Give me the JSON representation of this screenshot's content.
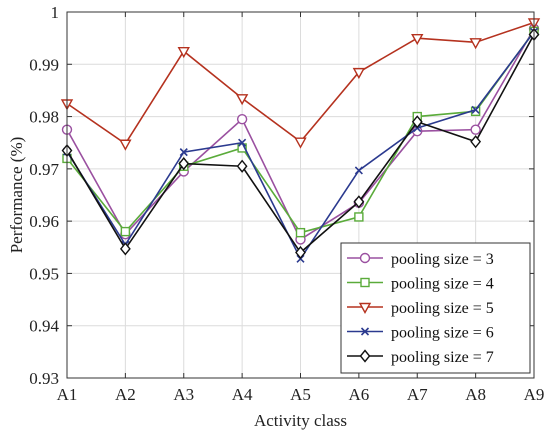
{
  "chart_data": {
    "type": "line",
    "xlabel": "Activity class",
    "ylabel": "Performance (%)",
    "categories": [
      "A1",
      "A2",
      "A3",
      "A4",
      "A5",
      "A6",
      "A7",
      "A8",
      "A9"
    ],
    "ylim": [
      0.93,
      1.0
    ],
    "yticks": [
      "0.93",
      "0.94",
      "0.95",
      "0.96",
      "0.97",
      "0.98",
      "0.99",
      "1"
    ],
    "grid": true,
    "legend_position": "bottom-right",
    "series": [
      {
        "name": "pooling size = 3",
        "color": "#9a50a0",
        "marker": "circle",
        "values": [
          0.9775,
          0.9575,
          0.9695,
          0.9795,
          0.9565,
          0.9635,
          0.9772,
          0.9775,
          0.9968
        ]
      },
      {
        "name": "pooling size = 4",
        "color": "#5aab3a",
        "marker": "square",
        "values": [
          0.972,
          0.958,
          0.9705,
          0.974,
          0.9578,
          0.9608,
          0.98,
          0.981,
          0.9963
        ]
      },
      {
        "name": "pooling size = 5",
        "color": "#b5321f",
        "marker": "triangle-down",
        "values": [
          0.9825,
          0.9748,
          0.9925,
          0.9835,
          0.9752,
          0.9885,
          0.995,
          0.9942,
          0.998
        ]
      },
      {
        "name": "pooling size = 6",
        "color": "#2b3a8f",
        "marker": "x",
        "values": [
          0.9733,
          0.9555,
          0.9732,
          0.975,
          0.9528,
          0.9697,
          0.9778,
          0.9813,
          0.9962
        ]
      },
      {
        "name": "pooling size = 7",
        "color": "#111111",
        "marker": "diamond",
        "values": [
          0.9735,
          0.9547,
          0.971,
          0.9705,
          0.954,
          0.9637,
          0.979,
          0.9752,
          0.9957
        ]
      }
    ]
  }
}
